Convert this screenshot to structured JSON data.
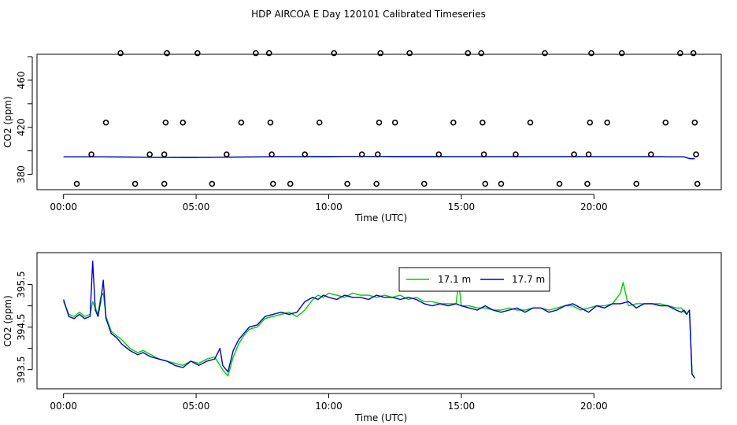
{
  "page": {
    "title": "HDP AIRCOA E  Day 120101  Calibrated Timeseries"
  },
  "chart_data": [
    {
      "type": "scatter",
      "xlabel": "Time (UTC)",
      "ylabel": "CO2 (ppm)",
      "xlim": [
        -1.0,
        24.8
      ],
      "ylim": [
        367,
        482
      ],
      "x_ticks": [
        {
          "value": 0,
          "label": "00:00"
        },
        {
          "value": 5,
          "label": "05:00"
        },
        {
          "value": 10,
          "label": "10:00"
        },
        {
          "value": 15,
          "label": "15:00"
        },
        {
          "value": 20,
          "label": "20:00"
        }
      ],
      "y_ticks": [
        {
          "value": 380,
          "label": "380"
        },
        {
          "value": 420,
          "label": "420"
        },
        {
          "value": 460,
          "label": "460"
        }
      ],
      "y_unlabeled_ticks": [
        400,
        440,
        480
      ],
      "points": {
        "x": [
          0.5,
          1.05,
          1.6,
          2.15,
          2.7,
          3.25,
          3.8,
          3.8,
          3.85,
          3.9,
          3.9,
          4.5,
          5.05,
          5.6,
          6.15,
          6.7,
          7.25,
          7.75,
          7.8,
          7.85,
          7.9,
          8.55,
          9.1,
          9.65,
          10.2,
          10.7,
          11.25,
          11.8,
          11.85,
          11.9,
          11.95,
          12.5,
          13.05,
          13.6,
          14.15,
          14.7,
          15.25,
          15.75,
          15.8,
          15.85,
          15.9,
          16.5,
          17.05,
          17.6,
          18.15,
          18.7,
          19.25,
          19.75,
          19.8,
          19.85,
          19.9,
          20.5,
          21.05,
          21.6,
          22.15,
          22.7,
          23.25,
          23.75,
          23.8,
          23.85,
          23.9
        ],
        "y": [
          372,
          397,
          424,
          483,
          372,
          397,
          372,
          397,
          424,
          483,
          483,
          424,
          483,
          372,
          397,
          424,
          483,
          483,
          424,
          397,
          372,
          372,
          397,
          424,
          483,
          372,
          397,
          372,
          397,
          424,
          483,
          424,
          483,
          372,
          397,
          424,
          483,
          483,
          424,
          397,
          372,
          372,
          397,
          424,
          483,
          372,
          397,
          372,
          397,
          424,
          483,
          424,
          483,
          372,
          397,
          424,
          483,
          483,
          424,
          397,
          372
        ]
      },
      "series": [
        {
          "name": "17.1 m",
          "color": "#00cc00",
          "x": [
            0,
            0.5,
            1,
            1.5,
            2,
            2.5,
            3,
            3.5,
            4,
            4.5,
            5,
            5.5,
            6,
            6.5,
            7,
            7.5,
            8,
            8.5,
            9,
            9.5,
            10,
            10.5,
            11,
            11.5,
            12,
            12.5,
            13,
            13.5,
            14,
            14.5,
            15,
            15.5,
            16,
            16.5,
            17,
            17.5,
            18,
            18.5,
            19,
            19.5,
            20,
            20.5,
            21,
            21.5,
            22,
            22.5,
            23,
            23.4,
            23.6,
            23.8
          ],
          "y": [
            394.9,
            394.9,
            394.9,
            394.9,
            394.8,
            394.7,
            394.6,
            394.5,
            394.5,
            394.4,
            394.4,
            394.5,
            394.6,
            394.7,
            394.8,
            394.9,
            395.0,
            395.0,
            395.0,
            395.1,
            395.1,
            395.2,
            395.2,
            395.2,
            395.2,
            395.1,
            395.1,
            395.1,
            395.1,
            395.0,
            395.0,
            395.0,
            395.0,
            395.0,
            395.0,
            395.0,
            395.0,
            395.0,
            395.0,
            395.0,
            395.0,
            395.0,
            395.0,
            395.0,
            395.0,
            395.0,
            394.9,
            394.9,
            393.4,
            393.3
          ]
        },
        {
          "name": "17.7 m",
          "color": "#0000cc",
          "x": [
            0,
            0.5,
            1,
            1.5,
            2,
            2.5,
            3,
            3.5,
            4,
            4.5,
            5,
            5.5,
            6,
            6.5,
            7,
            7.5,
            8,
            8.5,
            9,
            9.5,
            10,
            10.5,
            11,
            11.5,
            12,
            12.5,
            13,
            13.5,
            14,
            14.5,
            15,
            15.5,
            16,
            16.5,
            17,
            17.5,
            18,
            18.5,
            19,
            19.5,
            20,
            20.5,
            21,
            21.5,
            22,
            22.5,
            23,
            23.4,
            23.6,
            23.8
          ],
          "y": [
            394.9,
            394.9,
            394.9,
            394.9,
            394.8,
            394.7,
            394.6,
            394.5,
            394.5,
            394.4,
            394.4,
            394.5,
            394.6,
            394.7,
            394.8,
            394.9,
            395.0,
            395.0,
            395.0,
            395.1,
            395.1,
            395.2,
            395.2,
            395.2,
            395.2,
            395.1,
            395.1,
            395.1,
            395.1,
            395.0,
            395.0,
            395.0,
            395.0,
            395.0,
            395.0,
            395.0,
            395.0,
            395.0,
            395.0,
            395.0,
            395.0,
            395.0,
            395.0,
            395.0,
            395.0,
            395.0,
            394.9,
            394.9,
            393.4,
            393.3
          ]
        }
      ]
    },
    {
      "type": "line",
      "xlabel": "Time (UTC)",
      "ylabel": "CO2 (ppm)",
      "xlim": [
        -1.0,
        24.8
      ],
      "ylim": [
        393.05,
        396.25
      ],
      "legend_position": "top-center",
      "x_ticks": [
        {
          "value": 0,
          "label": "00:00"
        },
        {
          "value": 5,
          "label": "05:00"
        },
        {
          "value": 10,
          "label": "10:00"
        },
        {
          "value": 15,
          "label": "15:00"
        },
        {
          "value": 20,
          "label": "20:00"
        }
      ],
      "y_ticks": [
        {
          "value": 393.5,
          "label": "393.5"
        },
        {
          "value": 394.5,
          "label": "394.5"
        },
        {
          "value": 395.5,
          "label": "395.5"
        }
      ],
      "y_unlabeled_ticks": [
        394.0,
        395.0
      ],
      "series": [
        {
          "name": "17.1 m",
          "color": "#00cc00",
          "x": [
            0,
            0.2,
            0.4,
            0.6,
            0.8,
            1.0,
            1.1,
            1.2,
            1.3,
            1.4,
            1.5,
            1.6,
            1.8,
            2.0,
            2.2,
            2.5,
            2.8,
            3.0,
            3.3,
            3.6,
            3.9,
            4.2,
            4.5,
            4.8,
            5.1,
            5.4,
            5.7,
            6.0,
            6.2,
            6.4,
            6.6,
            6.8,
            7.0,
            7.3,
            7.6,
            7.9,
            8.2,
            8.5,
            8.8,
            9.1,
            9.4,
            9.6,
            9.8,
            10.0,
            10.3,
            10.6,
            10.9,
            11.2,
            11.5,
            11.8,
            12.1,
            12.4,
            12.7,
            13.0,
            13.3,
            13.6,
            13.9,
            14.2,
            14.5,
            14.8,
            14.9,
            15.0,
            15.3,
            15.6,
            15.9,
            16.2,
            16.5,
            16.8,
            17.1,
            17.4,
            17.7,
            18.0,
            18.3,
            18.6,
            18.9,
            19.2,
            19.5,
            19.8,
            20.1,
            20.4,
            20.7,
            21.0,
            21.1,
            21.3,
            21.6,
            21.9,
            22.2,
            22.5,
            22.8,
            23.1,
            23.3,
            23.4,
            23.5,
            23.6,
            23.7,
            23.8
          ],
          "y": [
            395.1,
            394.8,
            394.75,
            394.85,
            394.75,
            394.8,
            395.1,
            394.95,
            394.8,
            395.2,
            395.3,
            394.75,
            394.4,
            394.3,
            394.2,
            394.0,
            393.9,
            393.95,
            393.85,
            393.75,
            393.7,
            393.65,
            393.6,
            393.7,
            393.65,
            393.75,
            393.8,
            393.5,
            393.35,
            393.8,
            394.1,
            394.3,
            394.45,
            394.5,
            394.7,
            394.75,
            394.8,
            394.85,
            394.75,
            394.9,
            395.15,
            395.25,
            395.2,
            395.3,
            395.25,
            395.2,
            395.3,
            395.25,
            395.25,
            395.2,
            395.25,
            395.2,
            395.25,
            395.15,
            395.2,
            395.1,
            395.1,
            395.05,
            395.05,
            395.05,
            395.55,
            395.0,
            395.0,
            394.95,
            394.95,
            394.9,
            394.9,
            394.95,
            394.9,
            394.9,
            394.95,
            394.95,
            394.9,
            394.95,
            395.0,
            395.0,
            394.9,
            394.95,
            395.0,
            395.0,
            395.05,
            395.3,
            395.55,
            395.0,
            395.05,
            395.05,
            395.05,
            395.05,
            395.0,
            394.95,
            394.95,
            394.85,
            394.8,
            394.9,
            393.4,
            393.3
          ]
        },
        {
          "name": "17.7 m",
          "color": "#0000cc",
          "x": [
            0,
            0.2,
            0.4,
            0.6,
            0.8,
            1.0,
            1.1,
            1.2,
            1.3,
            1.4,
            1.5,
            1.6,
            1.8,
            2.0,
            2.2,
            2.5,
            2.8,
            3.0,
            3.3,
            3.6,
            3.9,
            4.2,
            4.5,
            4.8,
            5.1,
            5.4,
            5.7,
            5.9,
            6.0,
            6.2,
            6.4,
            6.6,
            6.8,
            7.0,
            7.3,
            7.6,
            7.9,
            8.2,
            8.5,
            8.8,
            9.1,
            9.4,
            9.6,
            9.8,
            10.0,
            10.3,
            10.6,
            10.9,
            11.2,
            11.5,
            11.8,
            12.1,
            12.4,
            12.7,
            13.0,
            13.3,
            13.6,
            13.9,
            14.2,
            14.5,
            14.8,
            15.0,
            15.3,
            15.6,
            15.9,
            16.2,
            16.5,
            16.8,
            17.1,
            17.4,
            17.7,
            18.0,
            18.3,
            18.6,
            18.9,
            19.2,
            19.5,
            19.8,
            20.1,
            20.4,
            20.7,
            21.0,
            21.3,
            21.6,
            21.9,
            22.2,
            22.5,
            22.8,
            23.1,
            23.3,
            23.4,
            23.5,
            23.6,
            23.7,
            23.8
          ],
          "y": [
            395.15,
            394.75,
            394.7,
            394.8,
            394.7,
            394.75,
            396.05,
            394.9,
            394.75,
            395.1,
            395.6,
            394.7,
            394.35,
            394.25,
            394.1,
            393.95,
            393.85,
            393.9,
            393.8,
            393.75,
            393.7,
            393.6,
            393.55,
            393.7,
            393.6,
            393.7,
            393.75,
            394.0,
            393.6,
            393.45,
            393.95,
            394.2,
            394.35,
            394.5,
            394.55,
            394.75,
            394.8,
            394.85,
            394.8,
            394.85,
            395.1,
            395.2,
            395.15,
            395.25,
            395.2,
            395.15,
            395.25,
            395.2,
            395.2,
            395.15,
            395.25,
            395.2,
            395.2,
            395.15,
            395.2,
            395.15,
            395.05,
            395.0,
            395.05,
            395.0,
            395.05,
            395.0,
            394.95,
            394.9,
            395.0,
            394.9,
            394.85,
            394.9,
            394.95,
            394.85,
            394.95,
            394.95,
            394.85,
            394.9,
            395.0,
            395.05,
            394.95,
            394.85,
            395.0,
            394.95,
            395.05,
            395.05,
            395.1,
            394.95,
            395.05,
            395.05,
            395.0,
            395.0,
            394.9,
            394.85,
            394.9,
            394.8,
            394.9,
            393.4,
            393.3
          ]
        }
      ]
    }
  ]
}
